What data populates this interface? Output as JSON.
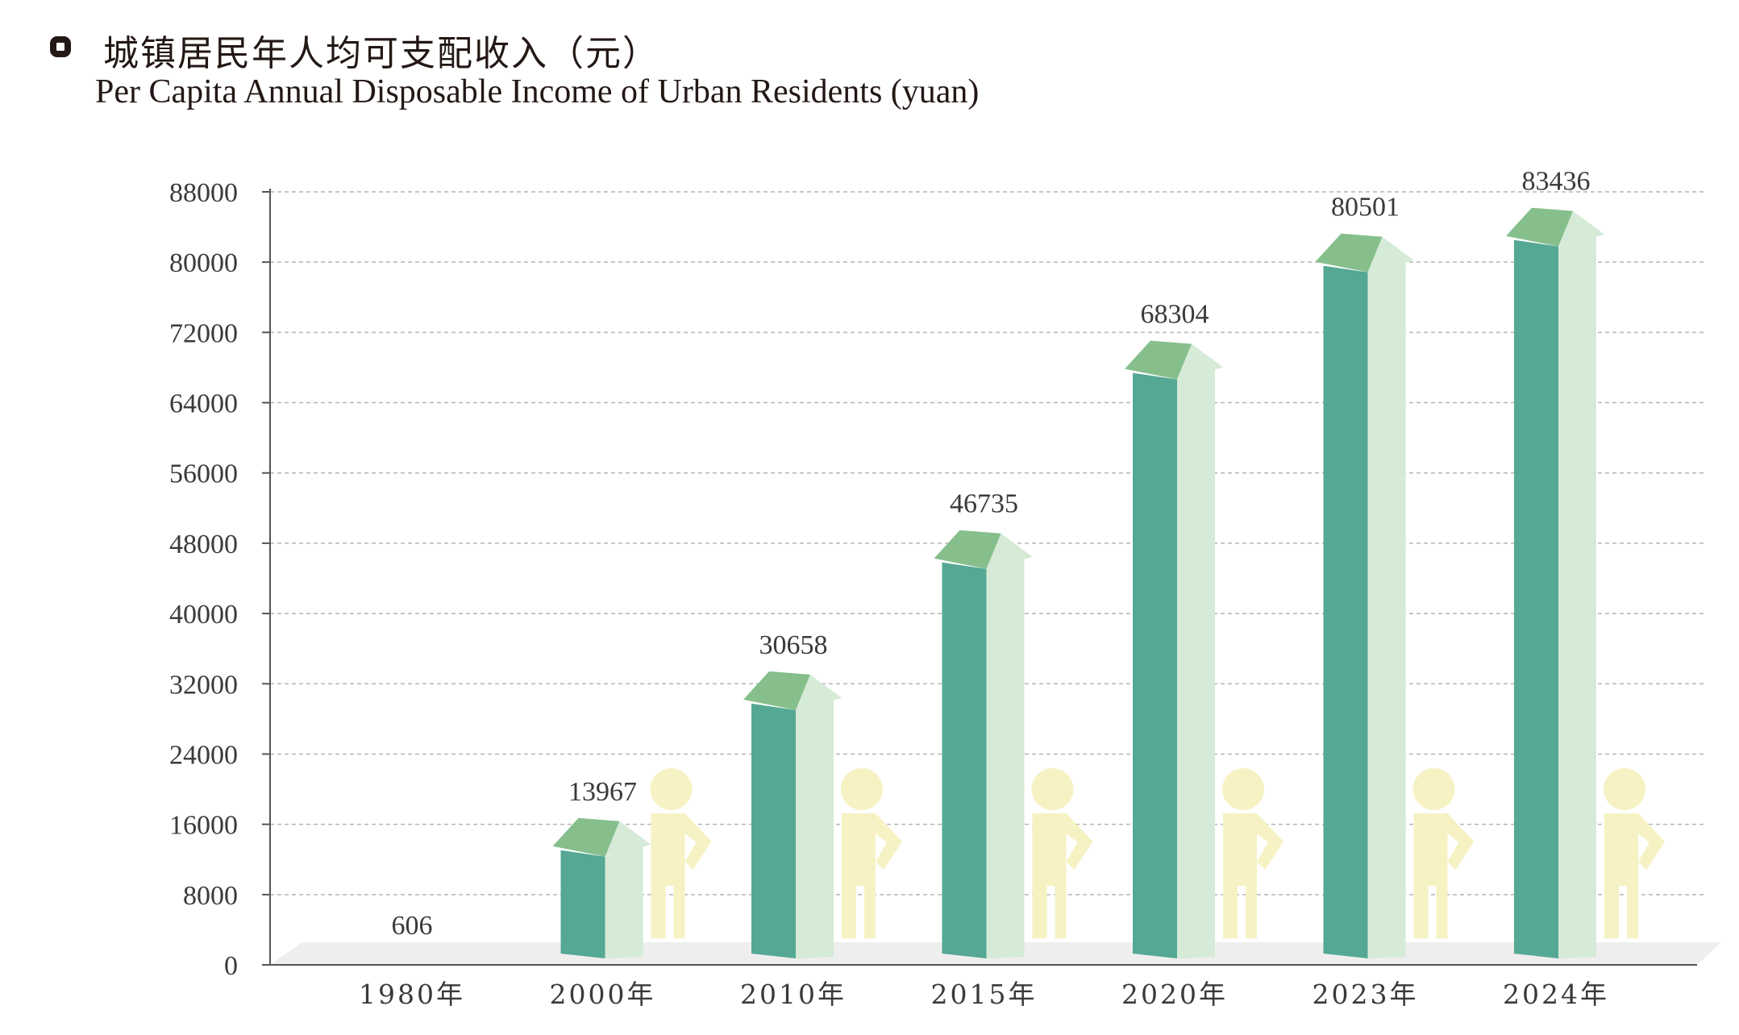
{
  "header": {
    "title_zh": "城镇居民年人均可支配收入（元）",
    "title_en": "Per Capita Annual Disposable Income of Urban Residents (yuan)"
  },
  "chart_data": {
    "type": "bar",
    "title": "城镇居民年人均可支配收入（元）",
    "subtitle": "Per Capita Annual Disposable Income of Urban Residents (yuan)",
    "categories": [
      "1980年",
      "2000年",
      "2010年",
      "2015年",
      "2020年",
      "2023年",
      "2024年"
    ],
    "values": [
      606,
      13967,
      30658,
      46735,
      68304,
      80501,
      83436
    ],
    "ylim": [
      0,
      88000
    ],
    "yticks": [
      0,
      8000,
      16000,
      24000,
      32000,
      40000,
      48000,
      56000,
      64000,
      72000,
      80000,
      88000
    ],
    "grid": true,
    "colors": {
      "bar_front": "#55a894",
      "bar_side": "#d5ead7",
      "bar_top": "#86bf8c",
      "figure": "#f6f2c4",
      "floor": "#eeeeee",
      "grid": "#b5b5b5",
      "axis": "#555555"
    }
  }
}
